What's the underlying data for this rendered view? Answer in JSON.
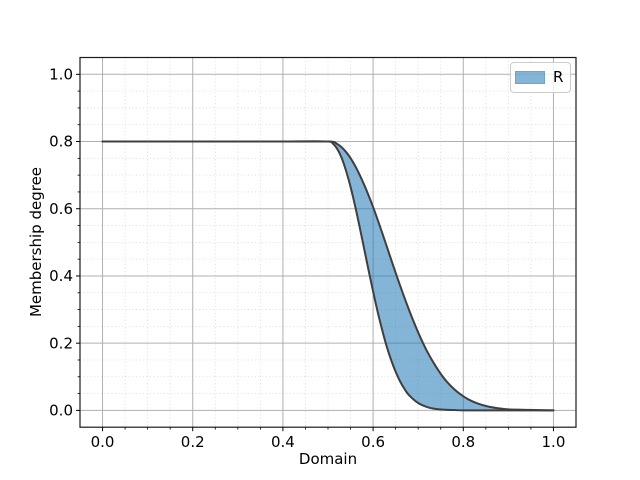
{
  "figure": {
    "background": "#ffffff"
  },
  "chart_data": {
    "type": "line",
    "title": "",
    "xlabel": "Domain",
    "ylabel": "Membership degree",
    "xlim": [
      -0.05,
      1.05
    ],
    "ylim": [
      -0.05,
      1.05
    ],
    "x_major_ticks": [
      0.0,
      0.2,
      0.4,
      0.6,
      0.8,
      1.0
    ],
    "x_tick_labels": [
      "0.0",
      "0.2",
      "0.4",
      "0.6",
      "0.8",
      "1.0"
    ],
    "y_major_ticks": [
      0.0,
      0.2,
      0.4,
      0.6,
      0.8,
      1.0
    ],
    "y_tick_labels": [
      "0.0",
      "0.2",
      "0.4",
      "0.6",
      "0.8",
      "1.0"
    ],
    "minor_tick_step": 0.05,
    "grid": {
      "major": true,
      "minor": true
    },
    "legend": {
      "position": "upper-right",
      "entries": [
        {
          "label": "R",
          "swatch_color": "rgba(31,119,180,0.55)"
        }
      ]
    },
    "band": {
      "name": "R",
      "plateau_value": 0.8,
      "plateau_range": [
        0.0,
        0.5
      ],
      "fill_color": "rgba(31,119,180,0.55)",
      "edge_color": "#3f3f3f",
      "edge_width": 2,
      "lower": {
        "x": [
          0.0,
          0.1,
          0.2,
          0.3,
          0.4,
          0.5,
          0.51,
          0.52,
          0.53,
          0.54,
          0.55,
          0.56,
          0.57,
          0.58,
          0.59,
          0.6,
          0.61,
          0.62,
          0.63,
          0.64,
          0.65,
          0.66,
          0.67,
          0.68,
          0.7,
          0.72,
          0.74,
          0.76,
          0.78,
          0.8,
          0.85,
          0.9,
          0.95,
          1.0
        ],
        "y": [
          0.8,
          0.8,
          0.8,
          0.8,
          0.8,
          0.8,
          0.795,
          0.779,
          0.752,
          0.713,
          0.665,
          0.609,
          0.547,
          0.482,
          0.417,
          0.354,
          0.294,
          0.24,
          0.191,
          0.15,
          0.115,
          0.086,
          0.063,
          0.045,
          0.022,
          0.01,
          0.004,
          0.002,
          0.001,
          0.0,
          0.0,
          0.0,
          0.0,
          0.0
        ]
      },
      "upper": {
        "x": [
          0.0,
          0.1,
          0.2,
          0.3,
          0.4,
          0.5,
          0.52,
          0.54,
          0.56,
          0.58,
          0.6,
          0.62,
          0.64,
          0.66,
          0.68,
          0.7,
          0.72,
          0.74,
          0.76,
          0.78,
          0.8,
          0.82,
          0.84,
          0.86,
          0.88,
          0.9,
          0.93,
          0.96,
          1.0
        ],
        "y": [
          0.8,
          0.8,
          0.8,
          0.8,
          0.8,
          0.8,
          0.793,
          0.769,
          0.728,
          0.672,
          0.605,
          0.529,
          0.449,
          0.371,
          0.298,
          0.232,
          0.175,
          0.129,
          0.091,
          0.063,
          0.042,
          0.027,
          0.017,
          0.01,
          0.006,
          0.003,
          0.002,
          0.001,
          0.0
        ]
      }
    },
    "colors": {
      "grid_major": "#b0b0b0",
      "grid_minor": "#d7d7d7",
      "spine": "#1a1a1a",
      "tick": "#000000",
      "tick_label": "#000000"
    }
  }
}
